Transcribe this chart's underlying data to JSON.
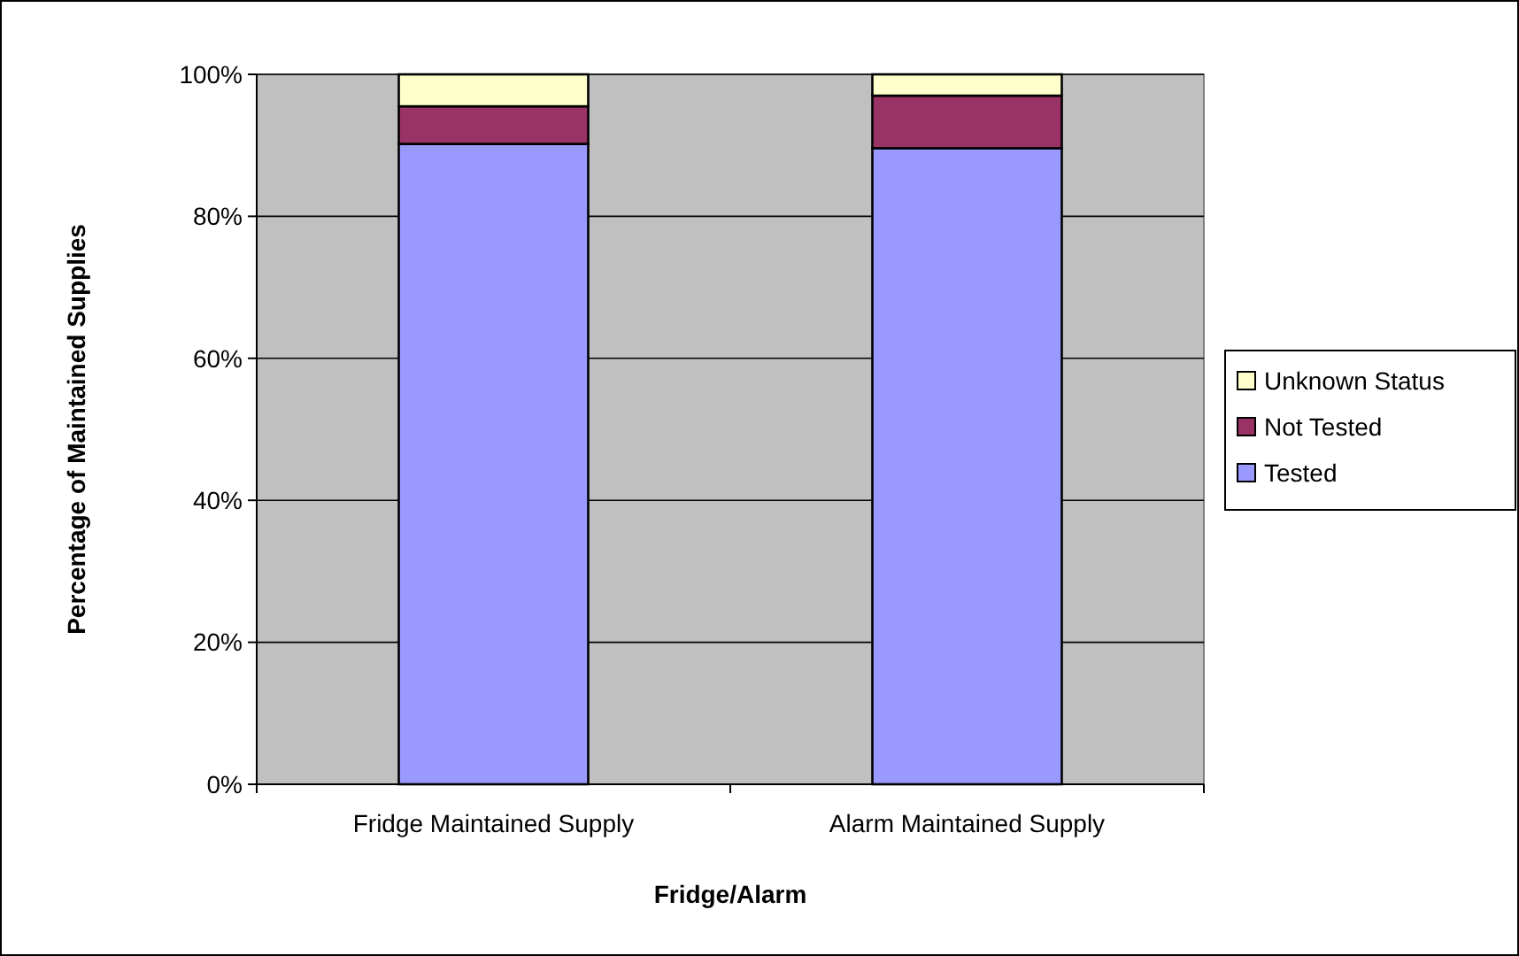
{
  "chart_data": {
    "type": "bar",
    "stacked": true,
    "xlabel": "Fridge/Alarm",
    "ylabel": "Percentage of Maintained Supplies",
    "categories": [
      "Fridge Maintained Supply",
      "Alarm Maintained Supply"
    ],
    "series": [
      {
        "name": "Tested",
        "color": "#9999ff",
        "values": [
          90.2,
          89.6
        ]
      },
      {
        "name": "Not Tested",
        "color": "#993366",
        "values": [
          5.3,
          7.4
        ]
      },
      {
        "name": "Unknown Status",
        "color": "#ffffcc",
        "values": [
          4.5,
          3.0
        ]
      }
    ],
    "ylim": [
      0,
      100
    ],
    "yticks": [
      {
        "value": 0,
        "label": "0%"
      },
      {
        "value": 20,
        "label": "20%"
      },
      {
        "value": 40,
        "label": "40%"
      },
      {
        "value": 60,
        "label": "60%"
      },
      {
        "value": 80,
        "label": "80%"
      },
      {
        "value": 100,
        "label": "100%"
      }
    ],
    "grid": "y",
    "legend": "right"
  }
}
